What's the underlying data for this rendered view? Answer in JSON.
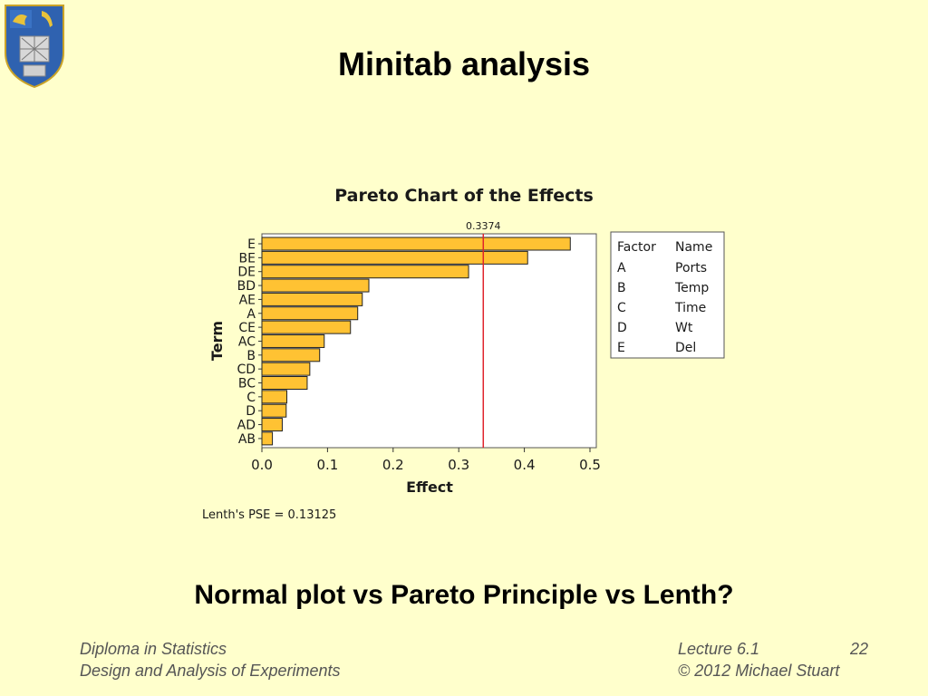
{
  "slide": {
    "title": "Minitab analysis",
    "subheading": "Normal plot vs Pareto Principle vs Lenth?"
  },
  "footer": {
    "course": "Diploma in Statistics",
    "module": "Design and Analysis of Experiments",
    "lecture": "Lecture 6.1",
    "page": "22",
    "copyright": "© 2012 Michael Stuart"
  },
  "chart_data": {
    "type": "bar",
    "orientation": "horizontal",
    "title": "Pareto Chart of the Effects",
    "xlabel": "Effect",
    "ylabel": "Term",
    "categories": [
      "E",
      "BE",
      "DE",
      "BD",
      "AE",
      "A",
      "CE",
      "AC",
      "B",
      "CD",
      "BC",
      "C",
      "D",
      "AD",
      "AB"
    ],
    "values": [
      0.47,
      0.405,
      0.315,
      0.163,
      0.153,
      0.146,
      0.135,
      0.095,
      0.088,
      0.073,
      0.069,
      0.038,
      0.037,
      0.031,
      0.016
    ],
    "xlim": [
      0.0,
      0.51
    ],
    "xticks": [
      "0.0",
      "0.1",
      "0.2",
      "0.3",
      "0.4",
      "0.5"
    ],
    "reference_line": {
      "value": 0.3374,
      "label": "0.3374",
      "color": "#e0242c"
    },
    "bar_color": "#ffc233",
    "legend": {
      "placement": "right",
      "headers": [
        "Factor",
        "Name"
      ],
      "rows": [
        [
          "A",
          "Ports"
        ],
        [
          "B",
          "Temp"
        ],
        [
          "C",
          "Time"
        ],
        [
          "D",
          "Wt"
        ],
        [
          "E",
          "Del"
        ]
      ]
    },
    "footnote": "Lenth's PSE = 0.13125"
  }
}
